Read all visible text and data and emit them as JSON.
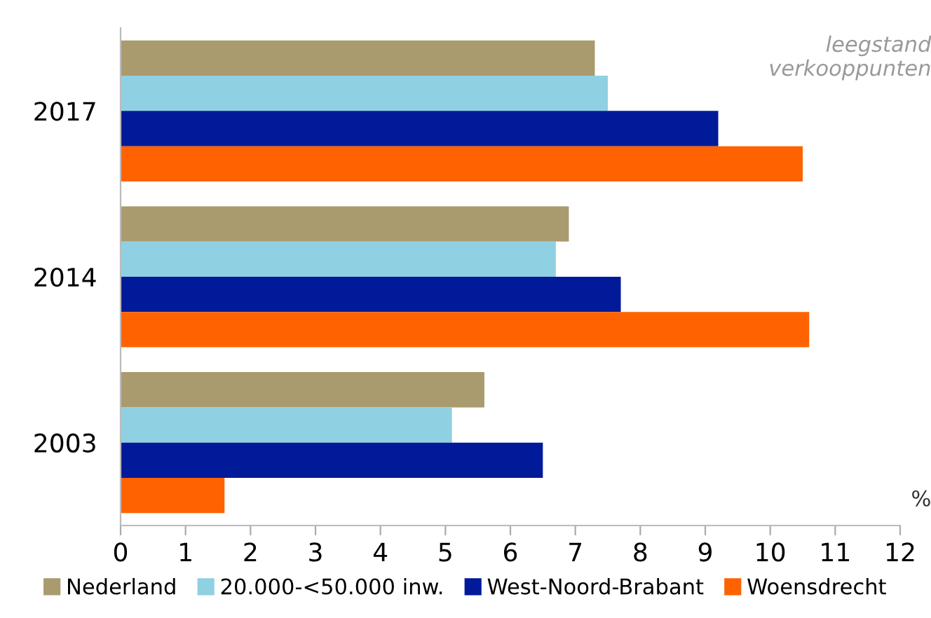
{
  "chart_data": {
    "type": "bar",
    "orientation": "horizontal",
    "categories": [
      "2017",
      "2014",
      "2003"
    ],
    "series": [
      {
        "name": "Nederland",
        "color": "#a99b6e",
        "values": [
          7.3,
          6.9,
          5.6
        ]
      },
      {
        "name": "20.000-<50.000 inw.",
        "color": "#8fd0e2",
        "values": [
          7.5,
          6.7,
          5.1
        ]
      },
      {
        "name": "West-Noord-Brabant",
        "color": "#001a99",
        "values": [
          9.2,
          7.7,
          6.5
        ]
      },
      {
        "name": "Woensdrecht",
        "color": "#ff6200",
        "values": [
          10.5,
          10.6,
          1.6
        ]
      }
    ],
    "xlim": [
      0,
      12
    ],
    "xticks": [
      0,
      1,
      2,
      3,
      4,
      5,
      6,
      7,
      8,
      9,
      10,
      11,
      12
    ],
    "annotations": [
      "leegstand\nverkooppunten",
      "%"
    ],
    "grid": false,
    "legend": "bottom"
  }
}
